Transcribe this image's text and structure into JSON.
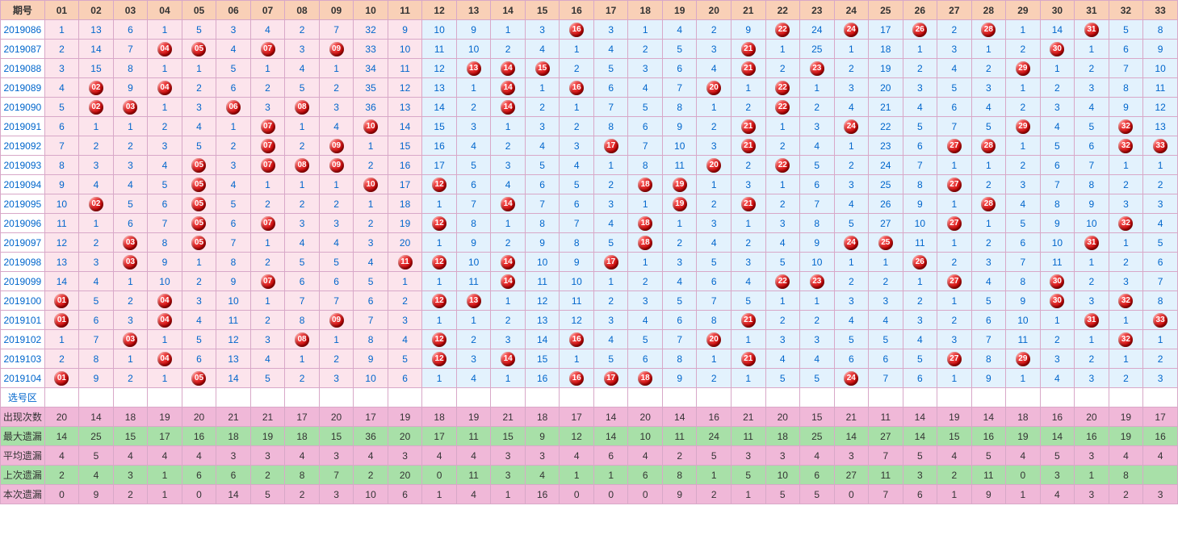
{
  "colors": {
    "header_bg": "#f9d0b7",
    "header_text": "#333333",
    "border": "#d8a8c8",
    "period_text": "#0066cc",
    "zone_a_bg": "#fce4ec",
    "zone_b_bg": "#e3f2fd",
    "zone_a_text": "#0066cc",
    "zone_b_text": "#0066cc",
    "ball_bg": "#cc0000",
    "select_bg": "#ffffff",
    "stat_pink_bg": "#f0b8d8",
    "stat_green_bg": "#a8e0a8",
    "stat_text": "#333333"
  },
  "header": {
    "period_label": "期号",
    "columns": [
      "01",
      "02",
      "03",
      "04",
      "05",
      "06",
      "07",
      "08",
      "09",
      "10",
      "11",
      "12",
      "13",
      "14",
      "15",
      "16",
      "17",
      "18",
      "19",
      "20",
      "21",
      "22",
      "23",
      "24",
      "25",
      "26",
      "27",
      "28",
      "29",
      "30",
      "31",
      "32",
      "33"
    ]
  },
  "zone_split": 11,
  "rows": [
    {
      "period": "2019086",
      "cells": [
        "1",
        "13",
        "6",
        "1",
        "5",
        "3",
        "4",
        "2",
        "7",
        "32",
        "9",
        "10",
        "9",
        "1",
        "3",
        "16",
        "3",
        "1",
        "4",
        "2",
        "9",
        "22",
        "24",
        "24",
        "17",
        "26",
        "2",
        "28",
        "1",
        "14",
        "31",
        "5",
        "8"
      ],
      "balls": [
        16,
        22,
        24,
        26,
        28,
        31
      ]
    },
    {
      "period": "2019087",
      "cells": [
        "2",
        "14",
        "7",
        "04",
        "05",
        "4",
        "07",
        "3",
        "09",
        "33",
        "10",
        "11",
        "10",
        "2",
        "4",
        "1",
        "4",
        "2",
        "5",
        "3",
        "21",
        "1",
        "25",
        "1",
        "18",
        "1",
        "3",
        "1",
        "2",
        "30",
        "1",
        "6",
        "9"
      ],
      "balls": [
        4,
        5,
        7,
        9,
        21,
        30
      ]
    },
    {
      "period": "2019088",
      "cells": [
        "3",
        "15",
        "8",
        "1",
        "1",
        "5",
        "1",
        "4",
        "1",
        "34",
        "11",
        "12",
        "13",
        "14",
        "15",
        "2",
        "5",
        "3",
        "6",
        "4",
        "21",
        "2",
        "23",
        "2",
        "19",
        "2",
        "4",
        "2",
        "29",
        "1",
        "2",
        "7",
        "10"
      ],
      "balls": [
        13,
        14,
        15,
        21,
        23,
        29
      ]
    },
    {
      "period": "2019089",
      "cells": [
        "4",
        "02",
        "9",
        "04",
        "2",
        "6",
        "2",
        "5",
        "2",
        "35",
        "12",
        "13",
        "1",
        "14",
        "1",
        "16",
        "6",
        "4",
        "7",
        "20",
        "1",
        "22",
        "1",
        "3",
        "20",
        "3",
        "5",
        "3",
        "1",
        "2",
        "3",
        "8",
        "11"
      ],
      "balls": [
        2,
        4,
        14,
        16,
        20,
        22
      ]
    },
    {
      "period": "2019090",
      "cells": [
        "5",
        "02",
        "03",
        "1",
        "3",
        "06",
        "3",
        "08",
        "3",
        "36",
        "13",
        "14",
        "2",
        "14",
        "2",
        "1",
        "7",
        "5",
        "8",
        "1",
        "2",
        "22",
        "2",
        "4",
        "21",
        "4",
        "6",
        "4",
        "2",
        "3",
        "4",
        "9",
        "12"
      ],
      "balls": [
        2,
        3,
        6,
        8,
        14,
        22
      ]
    },
    {
      "period": "2019091",
      "cells": [
        "6",
        "1",
        "1",
        "2",
        "4",
        "1",
        "07",
        "1",
        "4",
        "10",
        "14",
        "15",
        "3",
        "1",
        "3",
        "2",
        "8",
        "6",
        "9",
        "2",
        "21",
        "1",
        "3",
        "24",
        "22",
        "5",
        "7",
        "5",
        "29",
        "4",
        "5",
        "32",
        "13"
      ],
      "balls": [
        7,
        10,
        21,
        24,
        29,
        32
      ]
    },
    {
      "period": "2019092",
      "cells": [
        "7",
        "2",
        "2",
        "3",
        "5",
        "2",
        "07",
        "2",
        "09",
        "1",
        "15",
        "16",
        "4",
        "2",
        "4",
        "3",
        "17",
        "7",
        "10",
        "3",
        "21",
        "2",
        "4",
        "1",
        "23",
        "6",
        "27",
        "28",
        "1",
        "5",
        "6",
        "32",
        "33"
      ],
      "balls": [
        7,
        9,
        17,
        21,
        27,
        28,
        32,
        33
      ]
    },
    {
      "period": "2019093",
      "cells": [
        "8",
        "3",
        "3",
        "4",
        "05",
        "3",
        "07",
        "08",
        "09",
        "2",
        "16",
        "17",
        "5",
        "3",
        "5",
        "4",
        "1",
        "8",
        "11",
        "20",
        "2",
        "22",
        "5",
        "2",
        "24",
        "7",
        "1",
        "1",
        "2",
        "6",
        "7",
        "1",
        "1"
      ],
      "balls": [
        5,
        7,
        8,
        9,
        20,
        22
      ]
    },
    {
      "period": "2019094",
      "cells": [
        "9",
        "4",
        "4",
        "5",
        "05",
        "4",
        "1",
        "1",
        "1",
        "10",
        "17",
        "12",
        "6",
        "4",
        "6",
        "5",
        "2",
        "18",
        "19",
        "1",
        "3",
        "1",
        "6",
        "3",
        "25",
        "8",
        "27",
        "2",
        "3",
        "7",
        "8",
        "2",
        "2"
      ],
      "balls": [
        5,
        10,
        12,
        18,
        19,
        27
      ]
    },
    {
      "period": "2019095",
      "cells": [
        "10",
        "02",
        "5",
        "6",
        "05",
        "5",
        "2",
        "2",
        "2",
        "1",
        "18",
        "1",
        "7",
        "14",
        "7",
        "6",
        "3",
        "1",
        "19",
        "2",
        "21",
        "2",
        "7",
        "4",
        "26",
        "9",
        "1",
        "28",
        "4",
        "8",
        "9",
        "3",
        "3"
      ],
      "balls": [
        2,
        5,
        14,
        19,
        21,
        28
      ]
    },
    {
      "period": "2019096",
      "cells": [
        "11",
        "1",
        "6",
        "7",
        "05",
        "6",
        "07",
        "3",
        "3",
        "2",
        "19",
        "12",
        "8",
        "1",
        "8",
        "7",
        "4",
        "18",
        "1",
        "3",
        "1",
        "3",
        "8",
        "5",
        "27",
        "10",
        "27",
        "1",
        "5",
        "9",
        "10",
        "32",
        "4"
      ],
      "balls": [
        5,
        7,
        12,
        18,
        27,
        32
      ]
    },
    {
      "period": "2019097",
      "cells": [
        "12",
        "2",
        "03",
        "8",
        "05",
        "7",
        "1",
        "4",
        "4",
        "3",
        "20",
        "1",
        "9",
        "2",
        "9",
        "8",
        "5",
        "18",
        "2",
        "4",
        "2",
        "4",
        "9",
        "24",
        "25",
        "11",
        "1",
        "2",
        "6",
        "10",
        "31",
        "1",
        "5"
      ],
      "balls": [
        3,
        5,
        18,
        24,
        25,
        31
      ]
    },
    {
      "period": "2019098",
      "cells": [
        "13",
        "3",
        "03",
        "9",
        "1",
        "8",
        "2",
        "5",
        "5",
        "4",
        "11",
        "12",
        "10",
        "14",
        "10",
        "9",
        "17",
        "1",
        "3",
        "5",
        "3",
        "5",
        "10",
        "1",
        "1",
        "26",
        "2",
        "3",
        "7",
        "11",
        "1",
        "2",
        "6"
      ],
      "balls": [
        3,
        11,
        12,
        14,
        17,
        26
      ]
    },
    {
      "period": "2019099",
      "cells": [
        "14",
        "4",
        "1",
        "10",
        "2",
        "9",
        "07",
        "6",
        "6",
        "5",
        "1",
        "1",
        "11",
        "14",
        "11",
        "10",
        "1",
        "2",
        "4",
        "6",
        "4",
        "22",
        "23",
        "2",
        "2",
        "1",
        "27",
        "4",
        "8",
        "30",
        "2",
        "3",
        "7"
      ],
      "balls": [
        7,
        14,
        22,
        23,
        27,
        30
      ]
    },
    {
      "period": "2019100",
      "cells": [
        "01",
        "5",
        "2",
        "04",
        "3",
        "10",
        "1",
        "7",
        "7",
        "6",
        "2",
        "12",
        "13",
        "1",
        "12",
        "11",
        "2",
        "3",
        "5",
        "7",
        "5",
        "1",
        "1",
        "3",
        "3",
        "2",
        "1",
        "5",
        "9",
        "30",
        "3",
        "32",
        "8"
      ],
      "balls": [
        1,
        4,
        12,
        13,
        30,
        32
      ]
    },
    {
      "period": "2019101",
      "cells": [
        "01",
        "6",
        "3",
        "04",
        "4",
        "11",
        "2",
        "8",
        "09",
        "7",
        "3",
        "1",
        "1",
        "2",
        "13",
        "12",
        "3",
        "4",
        "6",
        "8",
        "21",
        "2",
        "2",
        "4",
        "4",
        "3",
        "2",
        "6",
        "10",
        "1",
        "31",
        "1",
        "33"
      ],
      "balls": [
        1,
        4,
        9,
        21,
        31,
        33
      ]
    },
    {
      "period": "2019102",
      "cells": [
        "1",
        "7",
        "03",
        "1",
        "5",
        "12",
        "3",
        "08",
        "1",
        "8",
        "4",
        "12",
        "2",
        "3",
        "14",
        "16",
        "4",
        "5",
        "7",
        "20",
        "1",
        "3",
        "3",
        "5",
        "5",
        "4",
        "3",
        "7",
        "11",
        "2",
        "1",
        "32",
        "1"
      ],
      "balls": [
        3,
        8,
        12,
        16,
        20,
        32
      ]
    },
    {
      "period": "2019103",
      "cells": [
        "2",
        "8",
        "1",
        "04",
        "6",
        "13",
        "4",
        "1",
        "2",
        "9",
        "5",
        "12",
        "3",
        "14",
        "15",
        "1",
        "5",
        "6",
        "8",
        "1",
        "21",
        "4",
        "4",
        "6",
        "6",
        "5",
        "27",
        "8",
        "29",
        "3",
        "2",
        "1",
        "2"
      ],
      "balls": [
        4,
        12,
        14,
        21,
        27,
        29
      ]
    },
    {
      "period": "2019104",
      "cells": [
        "01",
        "9",
        "2",
        "1",
        "05",
        "14",
        "5",
        "2",
        "3",
        "10",
        "6",
        "1",
        "4",
        "1",
        "16",
        "16",
        "17",
        "18",
        "9",
        "2",
        "1",
        "5",
        "5",
        "24",
        "7",
        "6",
        "1",
        "9",
        "1",
        "4",
        "3",
        "2",
        "3"
      ],
      "balls": [
        1,
        5,
        16,
        17,
        18,
        24
      ]
    }
  ],
  "select_row": {
    "label": "选号区"
  },
  "stats": [
    {
      "label": "出现次数",
      "style": "pink",
      "values": [
        "20",
        "14",
        "18",
        "19",
        "20",
        "21",
        "21",
        "17",
        "20",
        "17",
        "19",
        "18",
        "19",
        "21",
        "18",
        "17",
        "14",
        "20",
        "14",
        "16",
        "21",
        "20",
        "15",
        "21",
        "11",
        "14",
        "19",
        "14",
        "18",
        "16",
        "20",
        "19",
        "17"
      ]
    },
    {
      "label": "最大遗漏",
      "style": "green",
      "values": [
        "14",
        "25",
        "15",
        "17",
        "16",
        "18",
        "19",
        "18",
        "15",
        "36",
        "20",
        "17",
        "11",
        "15",
        "9",
        "12",
        "14",
        "10",
        "11",
        "24",
        "11",
        "18",
        "25",
        "14",
        "27",
        "14",
        "15",
        "16",
        "19",
        "14",
        "16",
        "19",
        "16"
      ]
    },
    {
      "label": "平均遗漏",
      "style": "pink",
      "values": [
        "4",
        "5",
        "4",
        "4",
        "4",
        "3",
        "3",
        "4",
        "3",
        "4",
        "3",
        "4",
        "4",
        "3",
        "3",
        "4",
        "6",
        "4",
        "2",
        "5",
        "3",
        "3",
        "4",
        "3",
        "7",
        "5",
        "4",
        "5",
        "4",
        "5",
        "3",
        "4",
        "4"
      ]
    },
    {
      "label": "上次遗漏",
      "style": "green",
      "values": [
        "2",
        "4",
        "3",
        "1",
        "6",
        "6",
        "2",
        "8",
        "7",
        "2",
        "20",
        "0",
        "11",
        "3",
        "4",
        "1",
        "1",
        "6",
        "8",
        "1",
        "5",
        "10",
        "6",
        "27",
        "11",
        "3",
        "2",
        "11",
        "0",
        "3",
        "1",
        "8",
        " "
      ]
    },
    {
      "label": "本次遗漏",
      "style": "pink",
      "values": [
        "0",
        "9",
        "2",
        "1",
        "0",
        "14",
        "5",
        "2",
        "3",
        "10",
        "6",
        "1",
        "4",
        "1",
        "16",
        "0",
        "0",
        "0",
        "9",
        "2",
        "1",
        "5",
        "5",
        "0",
        "7",
        "6",
        "1",
        "9",
        "1",
        "4",
        "3",
        "2",
        "3"
      ]
    }
  ]
}
